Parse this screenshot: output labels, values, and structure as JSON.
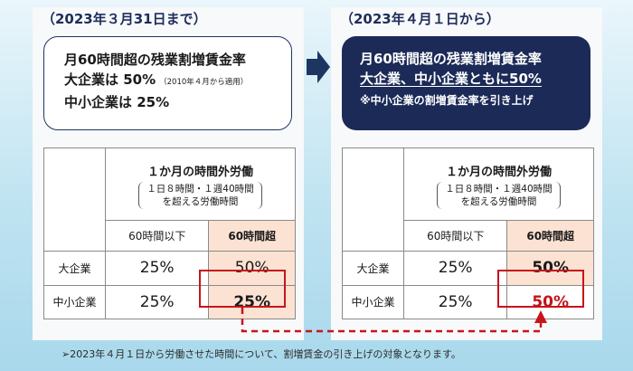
{
  "left": {
    "title": "（2023年３月31日まで）",
    "summary_line1": "月60時間超の残業割増賃金率",
    "summary_line2": "大企業は 50%",
    "summary_line2_note": "（2010年４月から適用）",
    "summary_line3": "中小企業は 25%"
  },
  "right": {
    "title": "（2023年４月１日から）",
    "summary_line1": "月60時間超の残業割増賃金率",
    "summary_line2": "大企業、中小企業ともに50%",
    "summary_line3": "※中小企業の割増賃金率を引き上げ"
  },
  "table": {
    "header_title": "１か月の時間外労働",
    "header_paren_line1": "１日８時間・１週40時間",
    "header_paren_line2": "を超える労働時間",
    "col_under": "60時間以下",
    "col_over": "60時間超",
    "row_large": "大企業",
    "row_sme": "中小企業"
  },
  "values_left": {
    "large_under": "25%",
    "large_over": "50%",
    "sme_under": "25%",
    "sme_over": "25%"
  },
  "values_right": {
    "large_under": "25%",
    "large_over": "50%",
    "sme_under": "25%",
    "sme_over": "50%"
  },
  "footnote": "➢2023年４月１日から労働させた時間について、割増賃金の引き上げの対象となります。",
  "colors": {
    "navy": "#1b2a57",
    "red": "#c8141c",
    "peach": "#fbe2d2",
    "arrow": "#1f3561"
  }
}
